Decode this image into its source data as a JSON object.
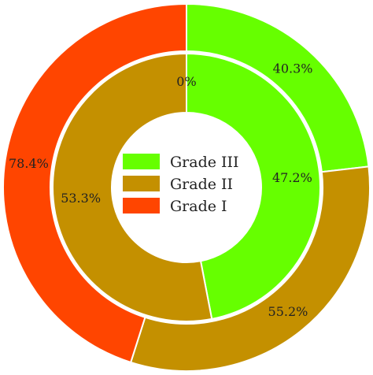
{
  "chart_data": {
    "type": "pie",
    "subtype": "nested-donut",
    "categories": [
      "Grade III",
      "Grade II",
      "Grade I"
    ],
    "colors": {
      "Grade III": "#66ff00",
      "Grade II": "#c49000",
      "Grade I": "#ff4500"
    },
    "series": [
      {
        "ring": "outer",
        "values": [
          40.3,
          55.2,
          78.4
        ],
        "labels": [
          "40.3%",
          "55.2%",
          "78.4%"
        ]
      },
      {
        "ring": "inner",
        "values": [
          47.2,
          53.3,
          0
        ],
        "labels": [
          "47.2%",
          "53.3%",
          "0%"
        ]
      }
    ],
    "legend": {
      "position": "center",
      "entries": [
        "Grade III",
        "Grade II",
        "Grade I"
      ]
    }
  }
}
